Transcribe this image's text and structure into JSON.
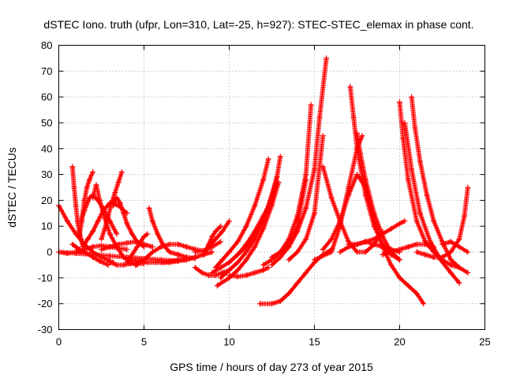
{
  "chart_data": {
    "type": "scatter",
    "title": "dSTEC Iono. truth (ufpr, Lon=310, Lat=-25, h=927): STEC-STEC_elemax in phase cont.",
    "xlabel": "GPS time / hours of day 273 of year 2015",
    "ylabel": "dSTEC  / TECUs",
    "xlim": [
      0,
      25
    ],
    "ylim": [
      -30,
      80
    ],
    "xticks": [
      0,
      5,
      10,
      15,
      20,
      25
    ],
    "yticks": [
      -30,
      -20,
      -10,
      0,
      10,
      20,
      30,
      40,
      50,
      60,
      70,
      80
    ],
    "grid": true,
    "marker": "plus",
    "color": "#ff0000",
    "series": [
      {
        "x": [
          0.0,
          0.5,
          1.0,
          1.5,
          2.0,
          2.5,
          3.0,
          3.2
        ],
        "y": [
          18,
          12,
          7,
          3,
          0,
          -2,
          -3.5,
          -4
        ]
      },
      {
        "x": [
          0.0,
          0.5,
          1.0,
          1.5,
          2.0,
          2.5,
          3.0,
          4.0
        ],
        "y": [
          0,
          -0.5,
          0,
          1,
          2,
          2.5,
          2,
          1
        ]
      },
      {
        "x": [
          0.0,
          1.0,
          2.0,
          3.0,
          4.0,
          5.0,
          6.0,
          7.0
        ],
        "y": [
          0,
          -0.5,
          -1,
          -1.5,
          -2,
          -2.5,
          -3,
          -3.5
        ]
      },
      {
        "x": [
          0.8,
          0.9,
          1.0,
          1.1,
          1.2,
          1.3,
          1.4,
          1.5
        ],
        "y": [
          33,
          25,
          18,
          12,
          8,
          5,
          3,
          2
        ]
      },
      {
        "x": [
          0.8,
          1.0,
          1.2,
          1.5,
          1.8,
          2.0,
          2.4,
          2.9
        ],
        "y": [
          3,
          2,
          1,
          0,
          -1,
          -2,
          -3.5,
          -5
        ]
      },
      {
        "x": [
          1.2,
          1.35,
          1.5,
          1.65,
          1.8,
          2.0
        ],
        "y": [
          6,
          12,
          20,
          25,
          28,
          31
        ]
      },
      {
        "x": [
          1.3,
          1.5,
          1.8,
          2.0,
          2.3,
          2.6,
          3.0,
          3.4
        ],
        "y": [
          12,
          16,
          21,
          22,
          20,
          17,
          12,
          7
        ]
      },
      {
        "x": [
          1.4,
          1.7,
          2.0,
          2.3,
          2.6,
          3.0,
          3.5,
          4.0
        ],
        "y": [
          2,
          5,
          8,
          12,
          16,
          19,
          18,
          15
        ]
      },
      {
        "x": [
          2.0,
          2.2,
          2.4,
          2.7,
          3.0,
          3.4,
          3.8,
          4.2,
          4.6
        ],
        "y": [
          21,
          26,
          20,
          13,
          7,
          2,
          -2,
          -4,
          -5
        ]
      },
      {
        "x": [
          2.5,
          2.7,
          2.9,
          3.1,
          3.3,
          3.5,
          3.7
        ],
        "y": [
          5,
          9,
          14,
          19,
          23,
          27,
          31
        ]
      },
      {
        "x": [
          3.2,
          3.4,
          3.6,
          3.8,
          4.0,
          4.3,
          4.6,
          5.0
        ],
        "y": [
          18,
          21,
          19,
          15,
          11,
          7,
          4,
          2
        ]
      },
      {
        "x": [
          3.0,
          3.4,
          3.8,
          4.2,
          4.6,
          5.0
        ],
        "y": [
          -4,
          -5,
          -5,
          -4.5,
          -4.5,
          -4.5
        ]
      },
      {
        "x": [
          4.0,
          4.2,
          4.4,
          4.6,
          4.8,
          5.0,
          5.2
        ],
        "y": [
          -4,
          -2,
          0,
          2,
          4,
          6,
          7
        ]
      },
      {
        "x": [
          4.2,
          4.7,
          5.2,
          5.7,
          6.2,
          6.7,
          7.0,
          7.4
        ],
        "y": [
          -3,
          -3.5,
          -4,
          -4,
          -4,
          -3.5,
          -3,
          -3
        ]
      },
      {
        "x": [
          5.3,
          5.5,
          5.8,
          6.1,
          6.5,
          7.0,
          7.5,
          8.0
        ],
        "y": [
          17,
          12,
          7,
          3,
          0,
          -1,
          -2,
          -2.5
        ]
      },
      {
        "x": [
          4.5,
          5.0,
          5.5,
          6.0,
          6.5,
          7.0,
          7.5,
          8.0,
          8.5
        ],
        "y": [
          -5,
          -3,
          0,
          2,
          3,
          3,
          2,
          1,
          0.5
        ]
      },
      {
        "x": [
          2.5,
          3.0,
          3.5,
          4.0,
          4.5,
          5.0,
          5.5
        ],
        "y": [
          1,
          2,
          3,
          3.5,
          4,
          3,
          2
        ]
      },
      {
        "x": [
          6.0,
          6.5,
          7.0,
          7.5,
          8.0,
          8.5,
          9.0
        ],
        "y": [
          -4,
          -4,
          -3.5,
          -3,
          -2,
          -1,
          0
        ]
      },
      {
        "x": [
          8.0,
          8.4,
          8.8,
          9.2,
          9.6,
          10.0
        ],
        "y": [
          -6,
          -8,
          -9,
          -9,
          -8,
          -7
        ]
      },
      {
        "x": [
          8.5,
          8.8,
          9.0,
          9.2,
          9.5
        ],
        "y": [
          -1,
          3,
          6,
          8,
          10
        ]
      },
      {
        "x": [
          8.8,
          9.2,
          9.6,
          10.0
        ],
        "y": [
          2,
          5,
          8,
          12
        ]
      },
      {
        "x": [
          8.0,
          8.5,
          9.0,
          9.5
        ],
        "y": [
          0,
          0.5,
          2,
          4
        ]
      },
      {
        "x": [
          9.0,
          9.5,
          10.0,
          10.5,
          11.0,
          11.5,
          12.0,
          12.5
        ],
        "y": [
          -8,
          -6,
          -4,
          -1,
          3,
          8,
          14,
          20
        ]
      },
      {
        "x": [
          9.5,
          10.0,
          10.5,
          11.0,
          11.5,
          12.0,
          12.4,
          12.8
        ],
        "y": [
          -10,
          -7,
          -4,
          0,
          5,
          12,
          20,
          29
        ]
      },
      {
        "x": [
          9.3,
          10.0,
          10.5,
          11.0,
          11.5,
          12.0,
          12.5,
          12.9
        ],
        "y": [
          -13,
          -10,
          -7,
          -3,
          2,
          9,
          18,
          27
        ]
      },
      {
        "x": [
          10.0,
          10.5,
          11.0,
          11.5,
          12.0,
          12.5,
          12.8,
          13.0
        ],
        "y": [
          -4,
          -1,
          2,
          7,
          13,
          21,
          29,
          37
        ]
      },
      {
        "x": [
          9.2,
          9.6,
          10.0,
          10.5,
          11.0,
          11.5,
          12.0,
          12.3
        ],
        "y": [
          -6,
          -3,
          0,
          4,
          10,
          18,
          28,
          36
        ]
      },
      {
        "x": [
          10.0,
          10.5,
          11.0,
          11.5,
          12.0,
          12.3
        ],
        "y": [
          -9,
          -9.5,
          -9,
          -8,
          -7,
          -6
        ]
      },
      {
        "x": [
          11.8,
          12.5,
          13.0,
          13.5,
          14.0,
          14.5,
          15.0,
          15.5,
          16.0
        ],
        "y": [
          -20,
          -20,
          -19,
          -16,
          -12,
          -8,
          -4,
          -1,
          1
        ]
      },
      {
        "x": [
          12.5,
          13.0,
          13.5,
          14.0,
          14.5,
          15.0,
          15.3,
          15.7
        ],
        "y": [
          -5,
          -2,
          2,
          8,
          17,
          32,
          52,
          75
        ]
      },
      {
        "x": [
          12.0,
          12.5,
          13.0,
          13.5,
          14.0,
          14.5,
          14.8
        ],
        "y": [
          -5,
          -3,
          0,
          5,
          14,
          30,
          57
        ]
      },
      {
        "x": [
          13.5,
          14.0,
          14.5,
          15.0,
          15.5
        ],
        "y": [
          -3,
          0,
          5,
          15,
          45
        ]
      },
      {
        "x": [
          12.5,
          13.0,
          13.5,
          14.0,
          14.5
        ],
        "y": [
          -2,
          0,
          3,
          10,
          28
        ]
      },
      {
        "x": [
          15.5,
          16.0,
          16.5,
          17.0,
          17.5,
          18.0,
          18.5,
          19.0
        ],
        "y": [
          33,
          21,
          12,
          4,
          0,
          0,
          3,
          8
        ]
      },
      {
        "x": [
          15.0,
          16.0,
          16.5,
          17.0,
          17.5,
          17.8
        ],
        "y": [
          -3,
          0,
          10,
          25,
          40,
          45
        ]
      },
      {
        "x": [
          17.1,
          17.3,
          17.5,
          18.0,
          18.5,
          19.0,
          19.5,
          20.0
        ],
        "y": [
          64,
          52,
          40,
          22,
          10,
          3,
          -1,
          -3
        ]
      },
      {
        "x": [
          17.5,
          17.7,
          18.0,
          18.5,
          19.0,
          19.5,
          20.0
        ],
        "y": [
          46,
          38,
          28,
          15,
          6,
          0,
          -3
        ]
      },
      {
        "x": [
          15.5,
          16.0,
          16.5,
          17.0,
          17.5,
          18.0,
          18.5,
          19.0,
          19.5,
          20.0,
          20.5,
          21.0,
          21.4
        ],
        "y": [
          1,
          5,
          12,
          22,
          30,
          25,
          12,
          2,
          -5,
          -10,
          -13,
          -16,
          -20
        ]
      },
      {
        "x": [
          16.5,
          17.0,
          17.5,
          18.0,
          18.5,
          19.0,
          19.5,
          20.0
        ],
        "y": [
          0,
          2,
          3,
          4,
          3,
          2,
          1,
          0
        ]
      },
      {
        "x": [
          17.0,
          17.5,
          18.0,
          18.5,
          19.0,
          19.5,
          20.0,
          20.3
        ],
        "y": [
          3,
          3,
          4,
          5,
          7,
          9,
          11,
          12
        ]
      },
      {
        "x": [
          20.0,
          20.2,
          20.5,
          21.0,
          21.5,
          22.0,
          22.5,
          23.0,
          23.5,
          24.0
        ],
        "y": [
          58,
          44,
          28,
          12,
          4,
          0,
          -3,
          -5,
          -6,
          -8
        ]
      },
      {
        "x": [
          20.7,
          20.9,
          21.2,
          21.6,
          22.0,
          22.5,
          23.0,
          23.5
        ],
        "y": [
          60,
          48,
          35,
          22,
          12,
          4,
          -3,
          -6
        ]
      },
      {
        "x": [
          20.3,
          20.7,
          21.2,
          21.8,
          22.4,
          23.0,
          23.5
        ],
        "y": [
          50,
          32,
          15,
          4,
          -3,
          -8,
          -12
        ]
      },
      {
        "x": [
          21.0,
          21.5,
          22.0,
          22.5,
          23.0,
          23.5,
          23.8,
          24.0
        ],
        "y": [
          0,
          -1,
          -2,
          -2,
          0,
          5,
          14,
          25
        ]
      },
      {
        "x": [
          22.5,
          23.0,
          23.5,
          24.0
        ],
        "y": [
          3,
          4,
          2,
          0
        ]
      },
      {
        "x": [
          19.0,
          19.5,
          20.0,
          20.5,
          21.0,
          21.5,
          22.0
        ],
        "y": [
          -1,
          0,
          1,
          2,
          3,
          3,
          2
        ]
      }
    ]
  }
}
